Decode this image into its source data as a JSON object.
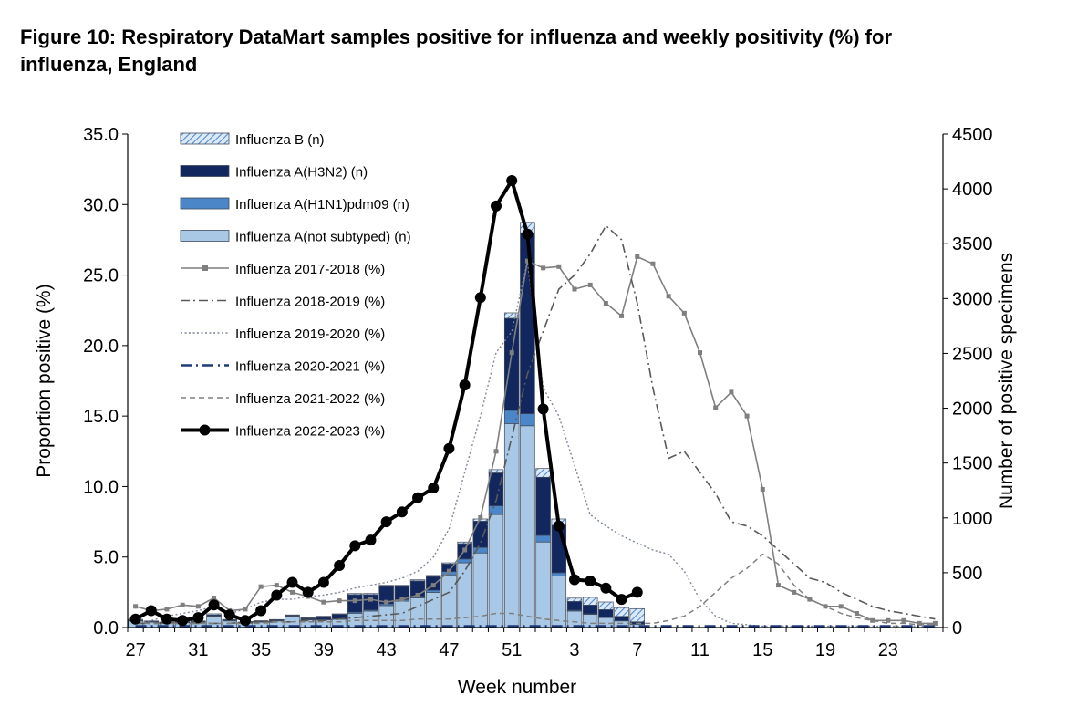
{
  "title": "Figure 10: Respiratory DataMart samples positive for influenza and weekly positivity (%) for influenza, England",
  "chart_data": {
    "type": "bar",
    "xlabel": "Week number",
    "ylabel": "Proportion positive (%)",
    "y2label": "Number of positive specimens",
    "ylim": [
      0,
      35
    ],
    "y2lim": [
      0,
      4500
    ],
    "yticks": [
      "0.0",
      "5.0",
      "10.0",
      "15.0",
      "20.0",
      "25.0",
      "30.0",
      "35.0"
    ],
    "y2ticks": [
      "0",
      "500",
      "1000",
      "1500",
      "2000",
      "2500",
      "3000",
      "3500",
      "4000",
      "4500"
    ],
    "xticks": [
      "27",
      "31",
      "35",
      "39",
      "43",
      "47",
      "51",
      "3",
      "7",
      "11",
      "15",
      "19",
      "23"
    ],
    "x_weeks": [
      27,
      28,
      29,
      30,
      31,
      32,
      33,
      34,
      35,
      36,
      37,
      38,
      39,
      40,
      41,
      42,
      43,
      44,
      45,
      46,
      47,
      48,
      49,
      50,
      51,
      52,
      1,
      2,
      3,
      4,
      5,
      6,
      7,
      8,
      9,
      10,
      11,
      12,
      13,
      14,
      15,
      16,
      17,
      18,
      19,
      20,
      21,
      22,
      23,
      24,
      25,
      26
    ],
    "legend_position": "top-left",
    "bar_series": [
      {
        "name": "Influenza A(not subtyped) (n)",
        "color": "#a8c8e6",
        "values": [
          60,
          50,
          40,
          45,
          50,
          100,
          60,
          40,
          50,
          60,
          100,
          70,
          70,
          75,
          130,
          150,
          200,
          240,
          270,
          320,
          480,
          590,
          680,
          1030,
          1860,
          1840,
          780,
          470,
          150,
          120,
          90,
          60,
          30
        ]
      },
      {
        "name": "Influenza A(H1N1)pdm09 (n)",
        "color": "#4a86c8",
        "values": [
          2,
          2,
          2,
          2,
          2,
          5,
          3,
          2,
          2,
          3,
          5,
          3,
          3,
          5,
          10,
          10,
          15,
          15,
          15,
          20,
          30,
          35,
          50,
          80,
          120,
          110,
          60,
          30,
          8,
          5,
          3,
          2,
          2
        ]
      },
      {
        "name": "Influenza A(H3N2) (n)",
        "color": "#13275f",
        "values": [
          3,
          3,
          3,
          3,
          3,
          10,
          5,
          3,
          5,
          5,
          5,
          10,
          20,
          40,
          160,
          140,
          160,
          120,
          140,
          125,
          70,
          140,
          240,
          300,
          840,
          1650,
          530,
          430,
          80,
          80,
          70,
          40,
          20
        ]
      },
      {
        "name": "Influenza B (n)",
        "color": "#8fb4de",
        "values": [
          10,
          5,
          5,
          5,
          5,
          10,
          5,
          5,
          5,
          5,
          5,
          5,
          10,
          5,
          10,
          10,
          10,
          10,
          10,
          10,
          10,
          15,
          20,
          30,
          50,
          95,
          80,
          60,
          30,
          70,
          70,
          80,
          120
        ]
      }
    ],
    "line_series": [
      {
        "name": "Influenza 2017-2018 (%)",
        "values": [
          1.5,
          1.2,
          1.3,
          1.6,
          1.5,
          2.1,
          1.2,
          1.3,
          2.9,
          3.0,
          2.5,
          2.2,
          1.8,
          1.9,
          1.9,
          2.0,
          1.8,
          2.0,
          2.3,
          3.0,
          4.0,
          5.5,
          7.8,
          12.5,
          19.5,
          26.0,
          25.5,
          25.6,
          24.0,
          24.3,
          23.0,
          22.1,
          26.3,
          25.8,
          23.5,
          22.3,
          19.5,
          15.6,
          16.7,
          15.0,
          9.8,
          3.0,
          2.5,
          2.0,
          1.5,
          1.5,
          1.0,
          0.5,
          0.5,
          0.5,
          0.3,
          0.3
        ]
      },
      {
        "name": "Influenza 2018-2019 (%)",
        "values": [
          0.3,
          0.3,
          0.3,
          0.3,
          0.3,
          0.3,
          0.3,
          0.4,
          0.4,
          0.4,
          0.4,
          0.5,
          0.5,
          0.6,
          0.7,
          0.8,
          0.9,
          1.0,
          1.5,
          2.0,
          2.5,
          4.0,
          6.0,
          9.0,
          13.5,
          18.0,
          21.0,
          24.0,
          25.0,
          26.5,
          28.5,
          27.5,
          23.0,
          17.0,
          12.0,
          12.5,
          11.0,
          9.5,
          7.5,
          7.2,
          6.5,
          5.5,
          4.5,
          3.5,
          3.2,
          2.5,
          2.0,
          1.5,
          1.2,
          1.0,
          0.8,
          0.6
        ]
      },
      {
        "name": "Influenza 2019-2020 (%)",
        "values": [
          0.3,
          0.5,
          0.8,
          1.0,
          1.2,
          1.5,
          1.0,
          1.3,
          1.8,
          2.0,
          2.0,
          2.2,
          2.3,
          2.5,
          2.8,
          3.0,
          3.2,
          3.5,
          4.0,
          5.0,
          7.0,
          11.0,
          15.0,
          19.5,
          21.0,
          26.0,
          17.0,
          15.0,
          11.5,
          8.0,
          7.2,
          6.5,
          6.0,
          5.5,
          5.2,
          4.0,
          2.0,
          0.8,
          0.3,
          0.2,
          0.1,
          0.1,
          0.1,
          0.1,
          0.1,
          0.1,
          0.1,
          0.1,
          0.1,
          0.1,
          0.1,
          0.1
        ]
      },
      {
        "name": "Influenza 2020-2021 (%)",
        "values": [
          0.1,
          0.1,
          0.1,
          0.1,
          0.1,
          0.1,
          0.1,
          0.1,
          0.1,
          0.1,
          0.1,
          0.1,
          0.1,
          0.1,
          0.1,
          0.1,
          0.1,
          0.1,
          0.1,
          0.1,
          0.1,
          0.1,
          0.1,
          0.1,
          0.1,
          0.1,
          0.1,
          0.1,
          0.1,
          0.1,
          0.1,
          0.1,
          0.1,
          0.1,
          0.1,
          0.1,
          0.1,
          0.1,
          0.1,
          0.1,
          0.1,
          0.1,
          0.1,
          0.1,
          0.1,
          0.1,
          0.1,
          0.1,
          0.1,
          0.1,
          0.1,
          0.1
        ]
      },
      {
        "name": "Influenza 2021-2022 (%)",
        "values": [
          0.3,
          0.3,
          0.3,
          0.3,
          0.3,
          0.3,
          0.3,
          0.3,
          0.3,
          0.4,
          0.4,
          0.4,
          0.4,
          0.4,
          0.5,
          0.5,
          0.5,
          0.5,
          0.6,
          0.6,
          0.6,
          0.7,
          0.8,
          1.0,
          1.0,
          0.8,
          0.6,
          0.5,
          0.4,
          0.3,
          0.3,
          0.3,
          0.3,
          0.3,
          0.5,
          0.8,
          1.5,
          2.5,
          3.5,
          4.2,
          5.2,
          4.5,
          3.0,
          2.0,
          1.5,
          1.0,
          0.7,
          0.5,
          0.3,
          0.3,
          0.2,
          0.2
        ]
      },
      {
        "name": "Influenza 2022-2023 (%)",
        "values": [
          0.6,
          1.2,
          0.6,
          0.5,
          0.7,
          1.6,
          0.9,
          0.5,
          1.2,
          2.3,
          3.2,
          2.5,
          3.2,
          4.4,
          5.8,
          6.2,
          7.5,
          8.2,
          9.2,
          9.9,
          12.7,
          17.2,
          23.4,
          29.9,
          31.7,
          27.9,
          15.5,
          7.2,
          3.4,
          3.3,
          2.8,
          2.0,
          2.5
        ]
      }
    ],
    "line_colors": [
      "#7f7f7f",
      "#595959",
      "#7f8799",
      "#1f3a7a",
      "#7f7f7f",
      "#000000"
    ]
  }
}
